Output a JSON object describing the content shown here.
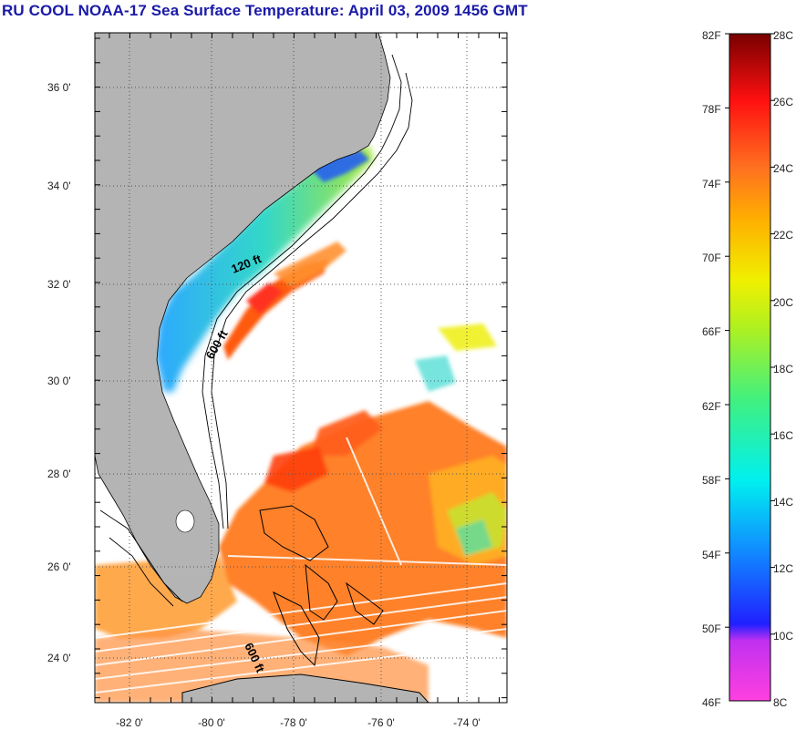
{
  "title": "RU COOL  NOAA-17  Sea Surface Temperature:  April 03, 2009 1456 GMT",
  "map": {
    "lat_labels": [
      "36 0'",
      "34 0'",
      "32 0'",
      "30 0'",
      "28 0'",
      "26 0'",
      "24 0'"
    ],
    "lon_labels": [
      "-82 0'",
      "-80 0'",
      "-78 0'",
      "-76 0'",
      "-74 0'"
    ],
    "contour_labels": [
      "120 ft",
      "600 ft",
      "600 ft"
    ],
    "colors": {
      "land": "#b4b4b4",
      "coast_line": "#000000",
      "grid": "#555555"
    }
  },
  "colorbar": {
    "fahrenheit_labels": [
      "82F",
      "78F",
      "74F",
      "70F",
      "66F",
      "62F",
      "58F",
      "54F",
      "50F",
      "46F"
    ],
    "celsius_labels": [
      "28C",
      "26C",
      "24C",
      "22C",
      "20C",
      "18C",
      "16C",
      "14C",
      "12C",
      "10C",
      "8C"
    ]
  }
}
